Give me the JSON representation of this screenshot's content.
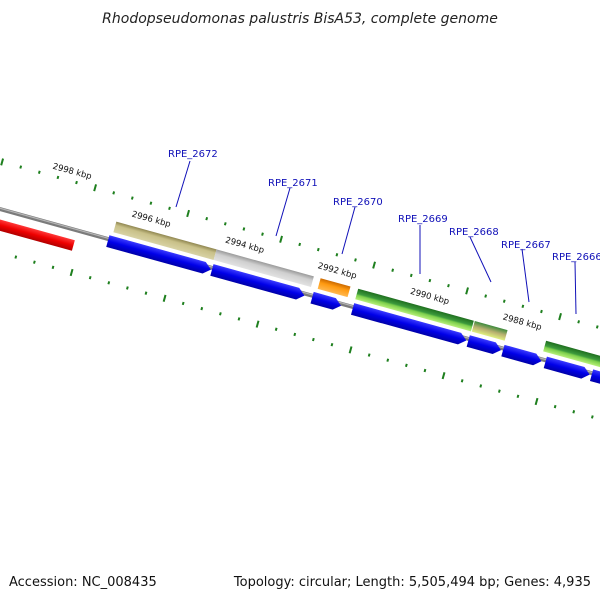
{
  "title": "Rhodopseudomonas palustris BisA53, complete genome",
  "footer": {
    "accession": "Accession: NC_008435",
    "summary": "Topology: circular; Length: 5,505,494 bp; Genes: 4,935"
  },
  "colors": {
    "backbone": "#777777",
    "tick": "#1e7f1e",
    "gene_label": "#1010b8",
    "cds_forward": "#0000ee",
    "feature_red": "#ee0000",
    "feature_olive": "#b8b070",
    "feature_gray": "#bdbdbd",
    "feature_orange": "#ff9900",
    "feature_green": "#3c9a3c",
    "feature_lightgreen": "#9be060"
  },
  "scale_labels": [
    "2998 kbp",
    "2996 kbp",
    "2994 kbp",
    "2992 kbp",
    "2990 kbp",
    "2988 kbp"
  ],
  "genes": [
    {
      "name": "RPE_2672"
    },
    {
      "name": "RPE_2671"
    },
    {
      "name": "RPE_2670"
    },
    {
      "name": "RPE_2669"
    },
    {
      "name": "RPE_2668"
    },
    {
      "name": "RPE_2667"
    },
    {
      "name": "RPE_2666"
    }
  ]
}
